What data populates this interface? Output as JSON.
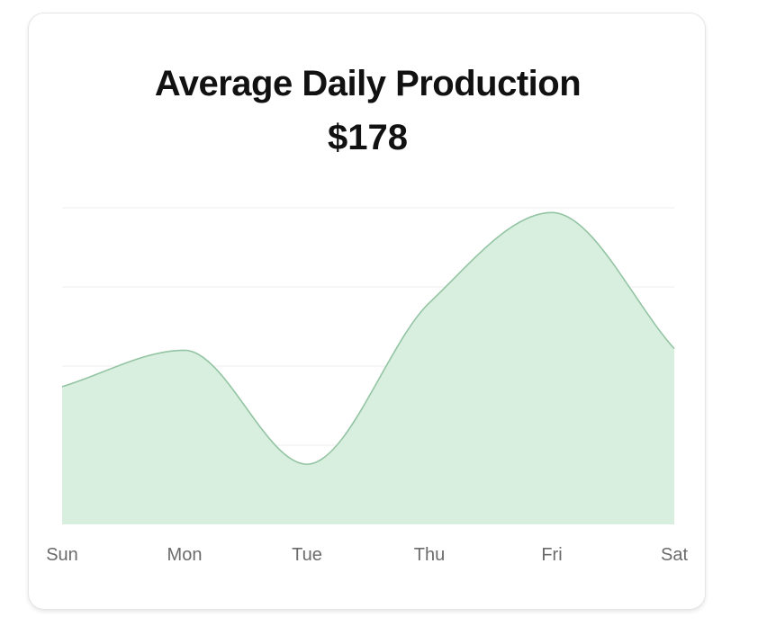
{
  "card": {
    "title": "Average Daily Production",
    "value": "$178"
  },
  "chart_data": {
    "type": "area",
    "title": "Average Daily Production",
    "categories": [
      "Sun",
      "Mon",
      "Tue",
      "Thu",
      "Fri",
      "Sat"
    ],
    "values": [
      174,
      220,
      76,
      280,
      394,
      222
    ],
    "ylim": [
      0,
      400
    ],
    "grid": true,
    "legend": "none",
    "colors": {
      "fill": "#d6eedd",
      "stroke": "#93c4a3",
      "grid": "#ececec",
      "tick_text": "#6b6b6b"
    }
  }
}
